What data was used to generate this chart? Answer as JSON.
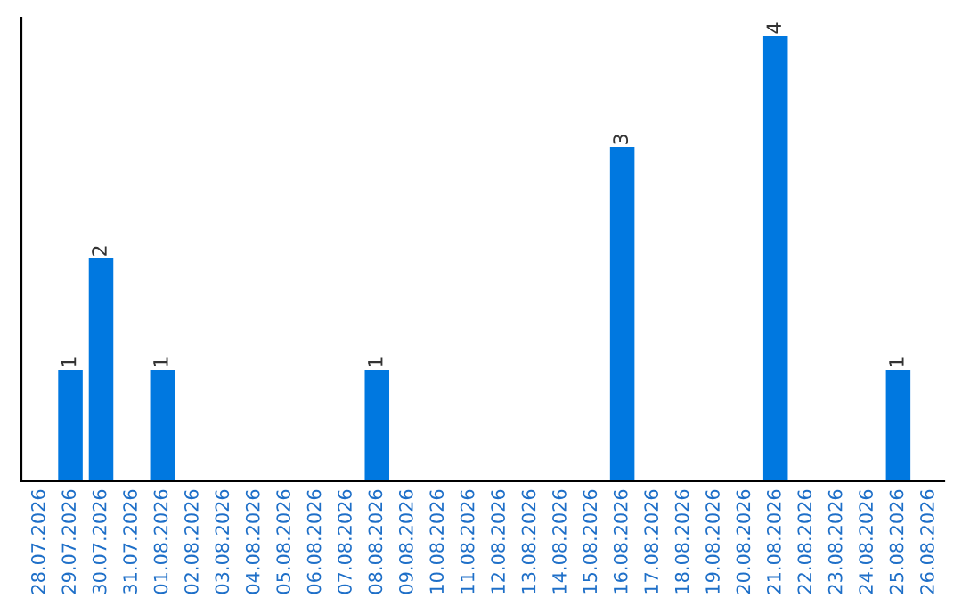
{
  "chart_data": {
    "type": "bar",
    "categories": [
      "28.07.2026",
      "29.07.2026",
      "30.07.2026",
      "31.07.2026",
      "01.08.2026",
      "02.08.2026",
      "03.08.2026",
      "04.08.2026",
      "05.08.2026",
      "06.08.2026",
      "07.08.2026",
      "08.08.2026",
      "09.08.2026",
      "10.08.2026",
      "11.08.2026",
      "12.08.2026",
      "13.08.2026",
      "14.08.2026",
      "15.08.2026",
      "16.08.2026",
      "17.08.2026",
      "18.08.2026",
      "19.08.2026",
      "20.08.2026",
      "21.08.2026",
      "22.08.2026",
      "23.08.2026",
      "24.08.2026",
      "25.08.2026",
      "26.08.2026"
    ],
    "values": [
      0,
      1,
      2,
      0,
      1,
      0,
      0,
      0,
      0,
      0,
      0,
      1,
      0,
      0,
      0,
      0,
      0,
      0,
      0,
      3,
      0,
      0,
      0,
      0,
      4,
      0,
      0,
      0,
      1,
      0
    ],
    "value_labels": [
      null,
      "1",
      "2",
      null,
      "1",
      null,
      null,
      null,
      null,
      null,
      null,
      "1",
      null,
      null,
      null,
      null,
      null,
      null,
      null,
      "3",
      null,
      null,
      null,
      null,
      "4",
      null,
      null,
      null,
      "1",
      null
    ],
    "color": "#0078e0",
    "tick_labels": "x",
    "grid": false,
    "legend": false
  }
}
